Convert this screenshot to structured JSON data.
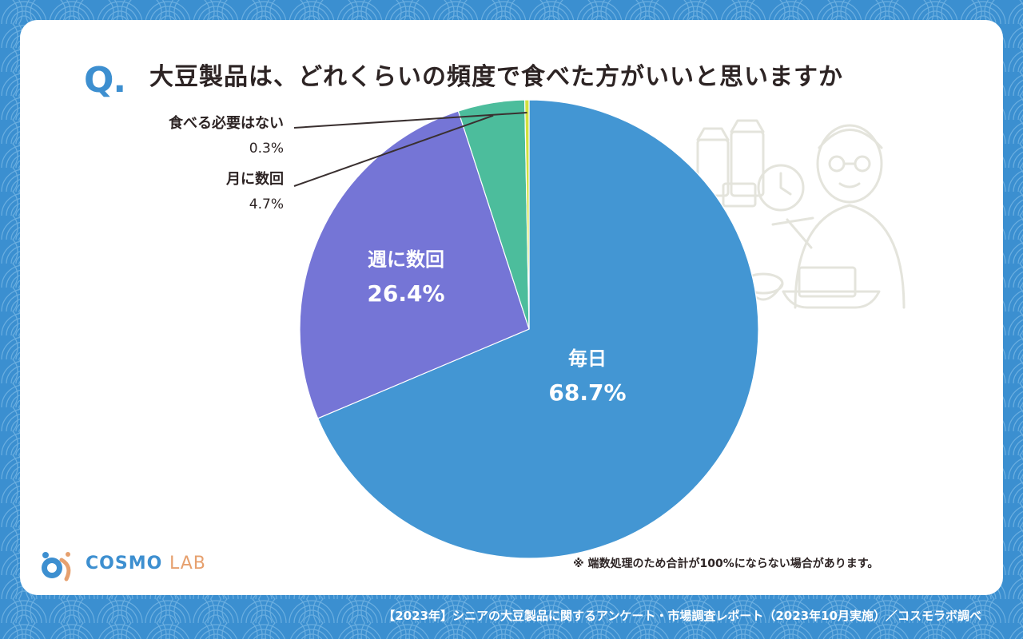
{
  "question": {
    "mark": "Q.",
    "title": "大豆製品は、どれくらいの頻度で食べた方がいいと思いますか"
  },
  "chart_data": {
    "type": "pie",
    "title": "大豆製品は、どれくらいの頻度で食べた方がいいと思いますか",
    "slices": [
      {
        "label": "毎日",
        "value": 68.7,
        "display": "68.7%",
        "color": "#4396d3"
      },
      {
        "label": "週に数回",
        "value": 26.4,
        "display": "26.4%",
        "color": "#7575d6"
      },
      {
        "label": "月に数回",
        "value": 4.7,
        "display": "4.7%",
        "color": "#4cbd9c"
      },
      {
        "label": "食べる必要はない",
        "value": 0.3,
        "display": "0.3%",
        "color": "#d2e040"
      }
    ]
  },
  "footnote": "※ 端数処理のため合計が100%にならない場合があります。",
  "logo": {
    "main": "COSMO",
    "sub": "LAB"
  },
  "source": "【2023年】シニアの大豆製品に関するアンケート・市場調査レポート（2023年10月実施）／コスモラボ調べ",
  "colors": {
    "background": "#3b8fd0",
    "card": "#ffffff",
    "accent": "#3d8fd0",
    "text": "#2d2424"
  }
}
